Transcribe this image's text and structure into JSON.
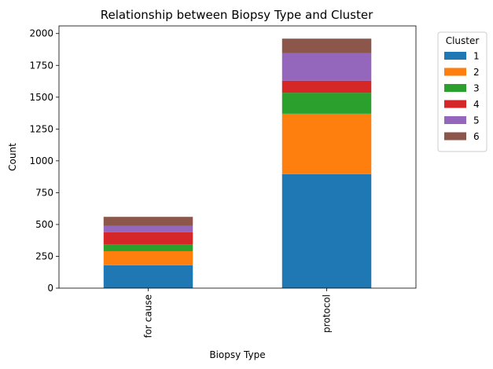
{
  "chart_data": {
    "type": "bar",
    "stacked": true,
    "title": "Relationship between Biopsy Type and Cluster",
    "xlabel": "Biopsy Type",
    "ylabel": "Count",
    "categories": [
      "for cause",
      "protocol"
    ],
    "ylim": [
      0,
      2060
    ],
    "yticks": [
      0,
      250,
      500,
      750,
      1000,
      1250,
      1500,
      1750,
      2000
    ],
    "grid": false,
    "legend": {
      "title": "Cluster",
      "placement": "outside-right"
    },
    "series": [
      {
        "name": "1",
        "color": "#1f77b4",
        "values": [
          180,
          895
        ]
      },
      {
        "name": "2",
        "color": "#ff7f0e",
        "values": [
          110,
          475
        ]
      },
      {
        "name": "3",
        "color": "#2ca02c",
        "values": [
          55,
          165
        ]
      },
      {
        "name": "4",
        "color": "#d62728",
        "values": [
          95,
          95
        ]
      },
      {
        "name": "5",
        "color": "#9467bd",
        "values": [
          50,
          215
        ]
      },
      {
        "name": "6",
        "color": "#8c564b",
        "values": [
          70,
          115
        ]
      }
    ]
  }
}
